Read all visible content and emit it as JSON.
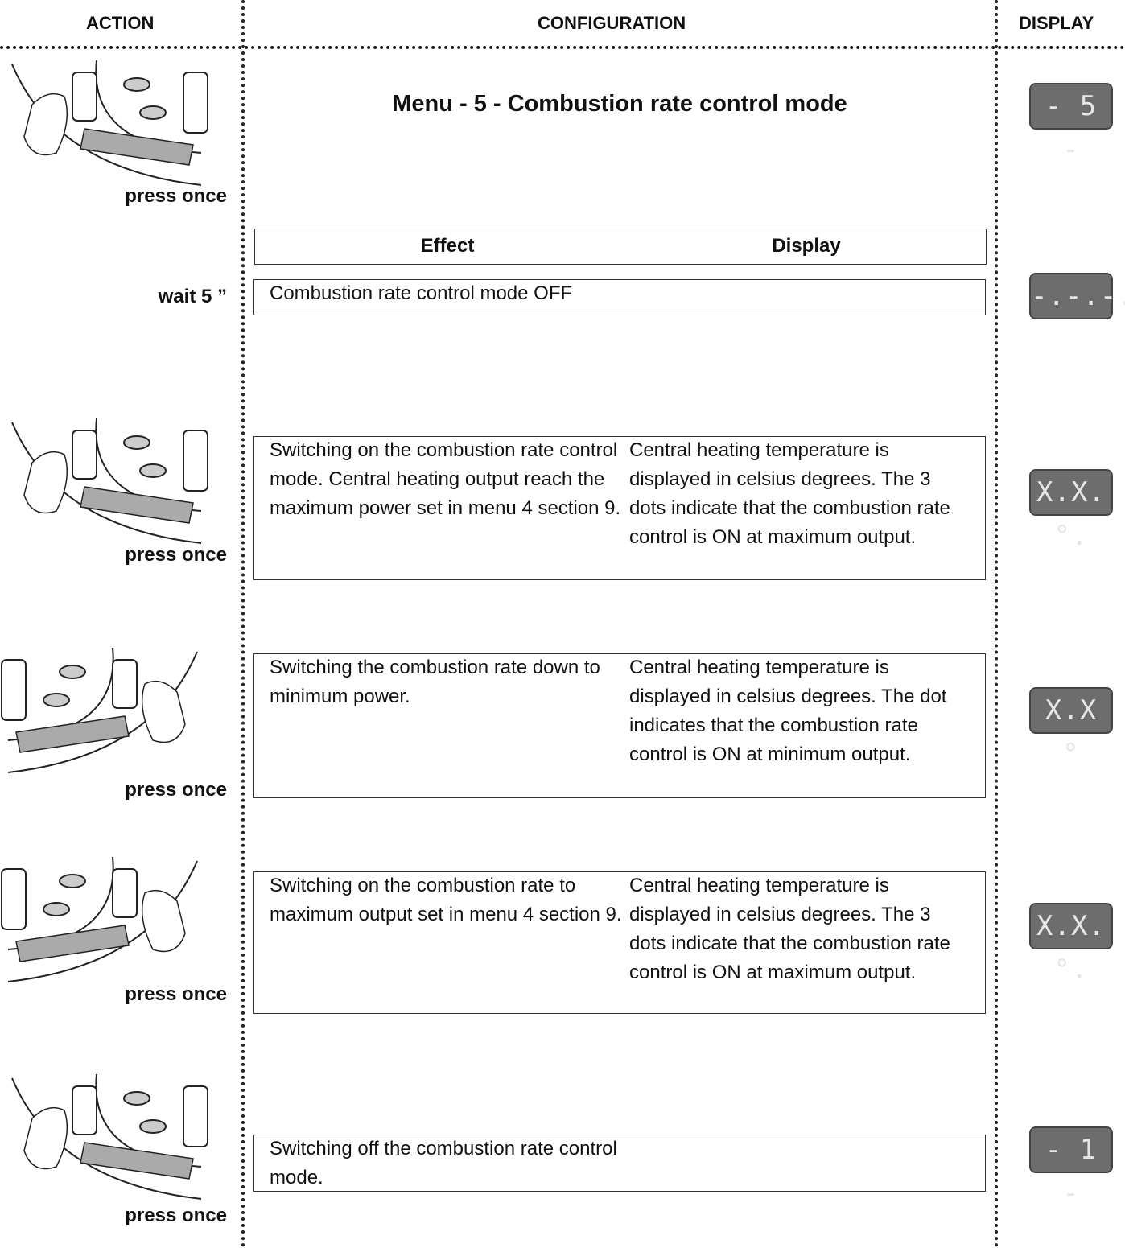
{
  "header": {
    "action": "ACTION",
    "configuration": "CONFIGURATION",
    "display": "DISPLAY"
  },
  "title": "Menu - 5 - Combustion rate control mode",
  "table_header": {
    "effect": "Effect",
    "display": "Display"
  },
  "steps": [
    {
      "action": "press once",
      "readout": "- 5 -"
    },
    {
      "action": "wait 5 ”",
      "effect": "Combustion rate control mode OFF",
      "readout": "-.-.-."
    },
    {
      "action": "press once",
      "effect": "Switching on the combustion rate control mode. Central heating output reach the maximum power set in menu 4 section 9.",
      "display": "Central heating temperature is displayed in celsius degrees. The 3 dots indicate that the combustion rate control is ON at maximum output.",
      "readout": "X.X.°."
    },
    {
      "action": "press once",
      "effect": "Switching the combustion rate down to minimum power.",
      "display": "Central heating temperature is displayed in celsius degrees. The dot indicates that the combustion rate control is ON at minimum output.",
      "readout": "X.X °"
    },
    {
      "action": "press once",
      "effect": "Switching on the combustion rate to maximum output set in menu 4 section 9.",
      "display": "Central heating temperature is displayed in celsius degrees. The 3 dots indicate that the combustion rate control is ON at maximum output.",
      "readout": "X.X.°."
    },
    {
      "action": "press once",
      "effect": "Switching off the combustion rate control mode.",
      "readout": "- 1 -"
    }
  ]
}
